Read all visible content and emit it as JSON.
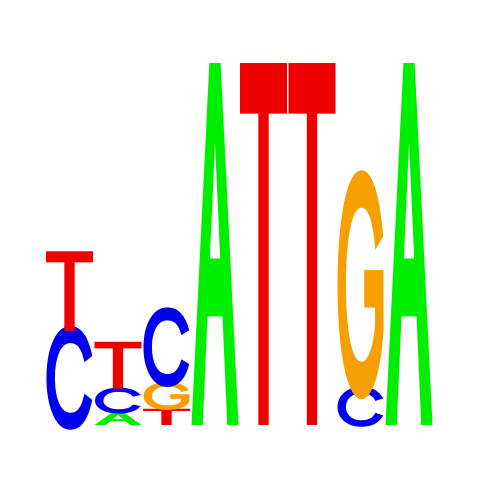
{
  "colors": {
    "A": "#00ee00",
    "C": "#0000ee",
    "G": "#f5a000",
    "T": "#ee0000"
  },
  "positions": [
    {
      "position": 1,
      "letters": [
        {
          "base": "C",
          "height": 0.52
        },
        {
          "base": "T",
          "height": 0.44
        }
      ]
    },
    {
      "position": 2,
      "letters": [
        {
          "base": "A",
          "height": 0.07
        },
        {
          "base": "C",
          "height": 0.13
        },
        {
          "base": "T",
          "height": 0.26
        }
      ]
    },
    {
      "position": 3,
      "letters": [
        {
          "base": "T",
          "height": 0.09
        },
        {
          "base": "G",
          "height": 0.14
        },
        {
          "base": "C",
          "height": 0.4
        }
      ]
    },
    {
      "position": 4,
      "letters": [
        {
          "base": "A",
          "height": 2.0
        }
      ]
    },
    {
      "position": 5,
      "letters": [
        {
          "base": "T",
          "height": 2.0
        }
      ]
    },
    {
      "position": 6,
      "letters": [
        {
          "base": "T",
          "height": 2.0
        }
      ]
    },
    {
      "position": 7,
      "letters": [
        {
          "base": "C",
          "height": 0.2
        },
        {
          "base": "G",
          "height": 1.15
        }
      ]
    },
    {
      "position": 8,
      "letters": [
        {
          "base": "A",
          "height": 2.0
        }
      ]
    }
  ]
}
